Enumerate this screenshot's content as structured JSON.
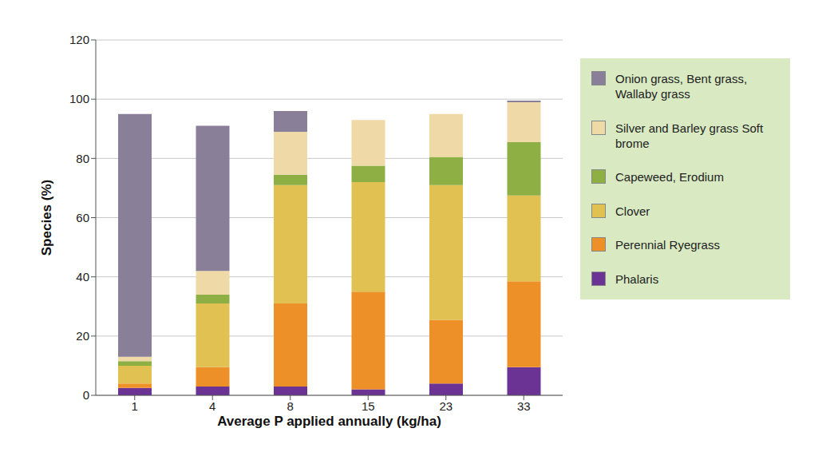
{
  "chart_data": {
    "type": "bar",
    "stacked": true,
    "x_label": "Average P applied annually (kg/ha)",
    "y_label": "Species (%)",
    "categories": [
      "1",
      "4",
      "8",
      "15",
      "23",
      "33"
    ],
    "ylim": [
      0,
      120
    ],
    "yticks": [
      0,
      20,
      40,
      60,
      80,
      100,
      120
    ],
    "grid": true,
    "legend": "right",
    "series": [
      {
        "name": "Phalaris",
        "color": "#6b3394",
        "values": [
          2.5,
          3,
          3,
          2,
          4,
          9.5
        ]
      },
      {
        "name": "Perennial Ryegrass",
        "color": "#ee9028",
        "values": [
          1.5,
          6.5,
          28,
          33,
          21.5,
          29
        ]
      },
      {
        "name": "Clover",
        "color": "#e0c152",
        "values": [
          6,
          21.5,
          40,
          37,
          45.5,
          29
        ]
      },
      {
        "name": "Capeweed, Erodium",
        "color": "#8daf43",
        "values": [
          1.5,
          3,
          3.5,
          5.5,
          9.5,
          18
        ]
      },
      {
        "name": "Silver and Barley grass Soft brome",
        "color": "#efd9a6",
        "values": [
          1.5,
          8,
          14.5,
          15.5,
          14.5,
          13.5
        ]
      },
      {
        "name": "Onion grass, Bent grass, Wallaby grass",
        "color": "#8a7f99",
        "values": [
          82,
          49,
          7,
          0,
          0,
          0.5
        ]
      }
    ]
  }
}
